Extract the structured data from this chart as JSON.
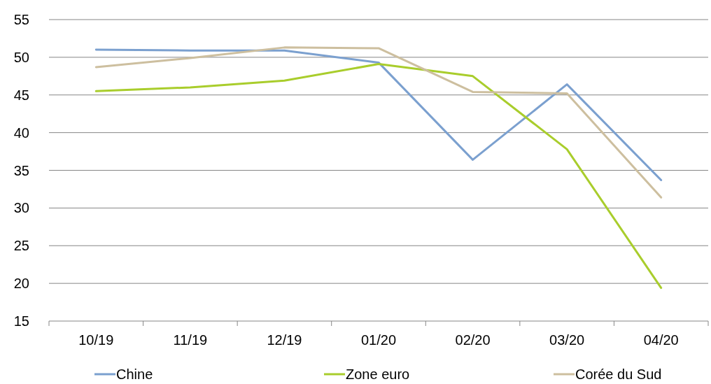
{
  "chart_data": {
    "type": "line",
    "categories": [
      "10/19",
      "11/19",
      "12/19",
      "01/20",
      "02/20",
      "03/20",
      "04/20"
    ],
    "series": [
      {
        "name": "Chine",
        "color": "#7ba0cf",
        "values": [
          51.0,
          50.9,
          50.9,
          49.3,
          36.4,
          46.4,
          33.7
        ]
      },
      {
        "name": "Zone euro",
        "color": "#a9cd2c",
        "values": [
          45.5,
          46.0,
          46.9,
          49.1,
          47.5,
          37.8,
          19.4
        ]
      },
      {
        "name": "Corée du Sud",
        "color": "#cdbf9f",
        "values": [
          48.7,
          49.9,
          51.3,
          51.2,
          45.4,
          45.2,
          31.4
        ]
      }
    ],
    "ylim": [
      15,
      55
    ],
    "yticks": [
      15,
      20,
      25,
      30,
      35,
      40,
      45,
      50,
      55
    ],
    "grid": "y",
    "legend": "bottom",
    "marker": "none",
    "line_style": "solid"
  }
}
